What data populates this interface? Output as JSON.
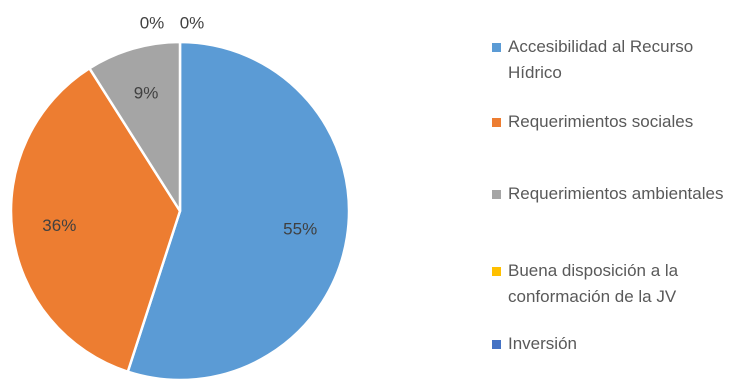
{
  "chart_data": {
    "type": "pie",
    "title": "",
    "legend_position": "right",
    "slices": [
      {
        "label": "Accesibilidad al Recurso Hídrico",
        "value": 55,
        "display": "55%",
        "color": "#5B9BD5"
      },
      {
        "label": "Requerimientos sociales",
        "value": 36,
        "display": "36%",
        "color": "#ED7D31"
      },
      {
        "label": "Requerimientos ambientales",
        "value": 9,
        "display": "9%",
        "color": "#A5A5A5"
      },
      {
        "label": "Buena disposición a la conformación de la JV",
        "value": 0,
        "display": "0%",
        "color": "#FFC000"
      },
      {
        "label": "Inversión",
        "value": 0,
        "display": "0%",
        "color": "#4472C4"
      }
    ]
  }
}
